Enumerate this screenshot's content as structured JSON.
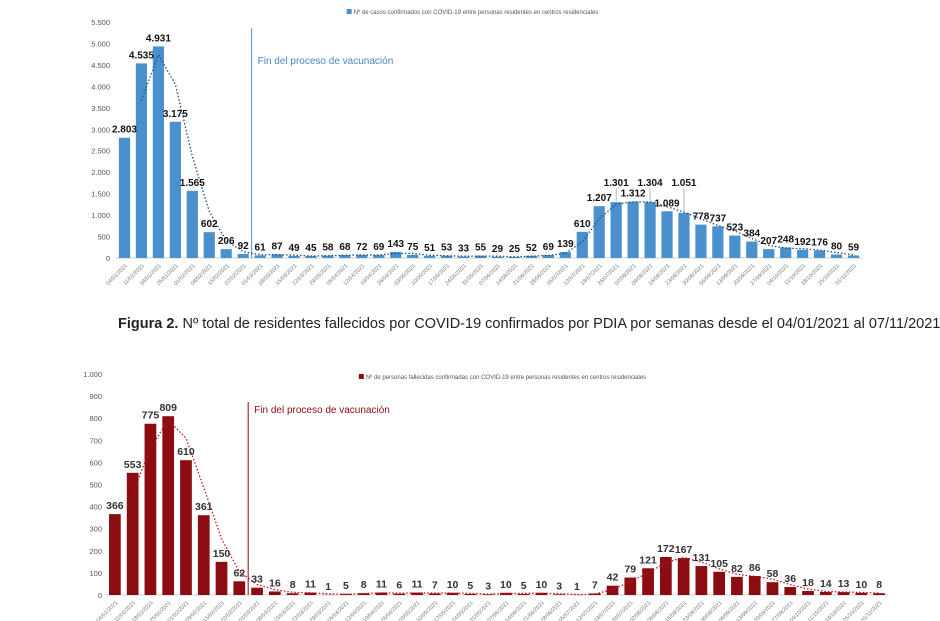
{
  "caption": {
    "label": "Figura 2.",
    "text": "Nº total de residentes fallecidos por COVID-19 confirmados por PDIA por semanas desde el 04/01/2021 al 07/11/2021"
  },
  "chart_data": [
    {
      "type": "bar",
      "title": "",
      "legend": "Nº de casos confirmados con COVID-19 entre personas residentes en centros residenciales",
      "legend_position": "top-center",
      "annotation": "Fin del proceso de vacunación",
      "annotation_after_category": "22/02/2021",
      "color": "#4a90cc",
      "text_color": "#4a86c0",
      "ylim": [
        0,
        5500
      ],
      "ystep": 500,
      "trendline": "moving-average",
      "categories": [
        "04/01/2021",
        "11/01/2021",
        "18/01/2021",
        "25/01/2021",
        "01/02/2021",
        "08/02/2021",
        "15/02/2021",
        "22/02/2021",
        "01/03/2021",
        "08/03/2021",
        "15/03/2021",
        "22/03/2021",
        "29/03/2021",
        "05/04/2021",
        "12/04/2021",
        "19/04/2021",
        "26/04/2021",
        "03/05/2021",
        "10/05/2021",
        "17/05/2021",
        "24/05/2021",
        "31/05/2021",
        "07/06/2021",
        "14/06/2021",
        "21/06/2021",
        "28/06/2021",
        "05/07/2021",
        "12/07/2021",
        "19/07/2021",
        "26/07/2021",
        "02/08/2021",
        "09/08/2021",
        "16/08/2021",
        "23/08/2021",
        "30/08/2021",
        "06/09/2021",
        "13/09/2021",
        "20/09/2021",
        "27/09/2021",
        "04/10/2021",
        "11/10/2021",
        "18/10/2021",
        "25/10/2021",
        "01/11/2021"
      ],
      "values": [
        2803,
        4535,
        4931,
        3175,
        1565,
        602,
        206,
        92,
        61,
        87,
        49,
        45,
        58,
        68,
        72,
        69,
        143,
        75,
        51,
        53,
        33,
        55,
        29,
        25,
        52,
        69,
        139,
        610,
        1207,
        1301,
        1312,
        1304,
        1089,
        1051,
        778,
        737,
        523,
        384,
        207,
        248,
        192,
        176,
        80,
        59
      ]
    },
    {
      "type": "bar",
      "title": "",
      "legend": "Nº de personas fallecidas confirmadas con COVID-19 entre personas residentes en centros residenciales",
      "legend_position": "top-center",
      "annotation": "Fin del proceso de vacunación",
      "annotation_after_category": "22/02/2021",
      "color": "#8b0d12",
      "text_color": "#8b0d12",
      "ylim": [
        0,
        1000
      ],
      "ystep": 100,
      "trendline": "moving-average",
      "categories": [
        "04/01/2021",
        "11/01/2021",
        "18/01/2021",
        "25/01/2021",
        "01/02/2021",
        "08/02/2021",
        "15/02/2021",
        "22/02/2021",
        "01/03/2021",
        "08/03/2021",
        "15/03/2021",
        "22/03/2021",
        "29/03/2021",
        "05/04/2021",
        "12/04/2021",
        "19/04/2021",
        "26/04/2021",
        "03/05/2021",
        "10/05/2021",
        "17/05/2021",
        "24/05/2021",
        "31/05/2021",
        "07/06/2021",
        "14/06/2021",
        "21/06/2021",
        "28/06/2021",
        "05/07/2021",
        "12/07/2021",
        "19/07/2021",
        "26/07/2021",
        "02/08/2021",
        "09/08/2021",
        "16/08/2021",
        "23/08/2021",
        "30/08/2021",
        "06/09/2021",
        "13/09/2021",
        "20/09/2021",
        "27/09/2021",
        "04/10/2021",
        "11/10/2021",
        "18/10/2021",
        "25/10/2021",
        "01/11/2021"
      ],
      "values": [
        366,
        553,
        775,
        809,
        610,
        361,
        150,
        62,
        33,
        16,
        8,
        11,
        1,
        5,
        8,
        11,
        6,
        11,
        7,
        10,
        5,
        3,
        10,
        5,
        10,
        3,
        1,
        7,
        42,
        79,
        121,
        172,
        167,
        131,
        105,
        82,
        86,
        58,
        36,
        18,
        14,
        13,
        10,
        8
      ]
    }
  ]
}
